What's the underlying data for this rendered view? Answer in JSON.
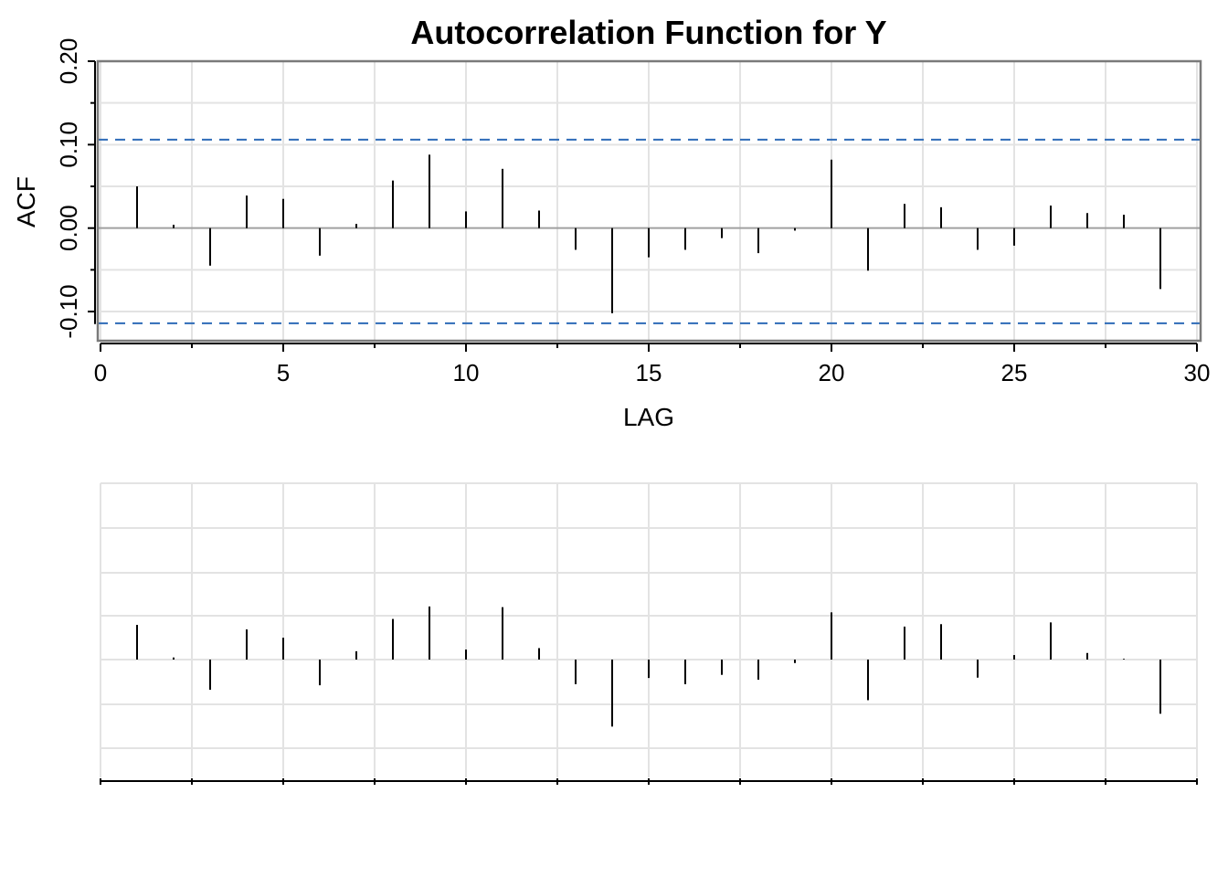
{
  "chart_data": [
    {
      "type": "bar",
      "title": "Autocorrelation Function for Y",
      "xlabel": "LAG",
      "ylabel": "ACF",
      "xlim": [
        0,
        30
      ],
      "ylim": [
        -0.135,
        0.2
      ],
      "x_ticks": [
        0,
        5,
        10,
        15,
        20,
        25,
        30
      ],
      "y_ticks": [
        -0.1,
        0.0,
        0.1,
        0.2
      ],
      "y_tick_labels": [
        "-0.10",
        "0.00",
        "0.10",
        "0.20"
      ],
      "grid": true,
      "confidence_bounds": [
        0.106,
        -0.114
      ],
      "lags": [
        1,
        2,
        3,
        4,
        5,
        6,
        7,
        8,
        9,
        10,
        11,
        12,
        13,
        14,
        15,
        16,
        17,
        18,
        19,
        20,
        21,
        22,
        23,
        24,
        25,
        26,
        27,
        28,
        29
      ],
      "values": [
        0.05,
        0.004,
        -0.045,
        0.039,
        0.035,
        -0.033,
        0.005,
        0.057,
        0.088,
        0.02,
        0.071,
        0.021,
        -0.026,
        -0.102,
        -0.035,
        -0.026,
        -0.012,
        -0.03,
        -0.003,
        0.082,
        -0.051,
        0.029,
        0.025,
        -0.026,
        -0.021,
        0.027,
        0.018,
        0.016,
        -0.073
      ],
      "colors": {
        "spike": "#000000",
        "bounds": "#2e6bb8",
        "grid": "#e3e3e3",
        "frame": "#7a7a7a"
      }
    },
    {
      "type": "bar",
      "title": "",
      "xlabel": "",
      "ylabel": "",
      "xlim": [
        0,
        30
      ],
      "ylim": [
        -0.35,
        0.5
      ],
      "grid": true,
      "lags": [
        1,
        2,
        3,
        4,
        5,
        6,
        7,
        8,
        9,
        10,
        11,
        12,
        13,
        14,
        15,
        16,
        17,
        18,
        19,
        20,
        21,
        22,
        23,
        24,
        25,
        26,
        27,
        28,
        29
      ],
      "values": [
        0.1,
        0.006,
        -0.087,
        0.087,
        0.063,
        -0.074,
        0.024,
        0.117,
        0.153,
        0.029,
        0.151,
        0.033,
        -0.071,
        -0.193,
        -0.053,
        -0.071,
        -0.044,
        -0.058,
        -0.01,
        0.136,
        -0.117,
        0.095,
        0.102,
        -0.052,
        0.013,
        0.107,
        0.019,
        0.002,
        -0.156
      ]
    }
  ]
}
